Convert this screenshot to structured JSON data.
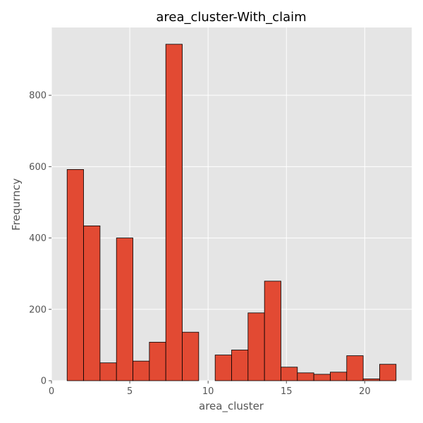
{
  "chart_data": {
    "type": "bar",
    "title": "area_cluster-With_claim",
    "xlabel": "area_cluster",
    "ylabel": "Frequrncy",
    "xlim": [
      0,
      23.0
    ],
    "ylim": [
      0,
      990
    ],
    "x_ticks": [
      0,
      5,
      10,
      15,
      20
    ],
    "y_ticks": [
      0,
      200,
      400,
      600,
      800
    ],
    "grid": true,
    "bin_width": 1.05,
    "bins": [
      {
        "start": 1.0,
        "value": 592
      },
      {
        "start": 2.05,
        "value": 434
      },
      {
        "start": 3.1,
        "value": 50
      },
      {
        "start": 4.15,
        "value": 400
      },
      {
        "start": 5.2,
        "value": 55
      },
      {
        "start": 6.25,
        "value": 108
      },
      {
        "start": 7.3,
        "value": 943
      },
      {
        "start": 8.35,
        "value": 136
      },
      {
        "start": 9.4,
        "value": 0
      },
      {
        "start": 10.45,
        "value": 72
      },
      {
        "start": 11.5,
        "value": 86
      },
      {
        "start": 12.55,
        "value": 190
      },
      {
        "start": 13.6,
        "value": 279
      },
      {
        "start": 14.65,
        "value": 38
      },
      {
        "start": 15.7,
        "value": 22
      },
      {
        "start": 16.75,
        "value": 18
      },
      {
        "start": 17.8,
        "value": 24
      },
      {
        "start": 18.85,
        "value": 70
      },
      {
        "start": 19.9,
        "value": 5
      },
      {
        "start": 20.95,
        "value": 46
      }
    ]
  },
  "colors": {
    "plot_background": "#e5e5e5",
    "grid": "#ffffff",
    "bar_fill": "#e24a33",
    "bar_edge": "#000000",
    "tick_text": "#555555"
  }
}
